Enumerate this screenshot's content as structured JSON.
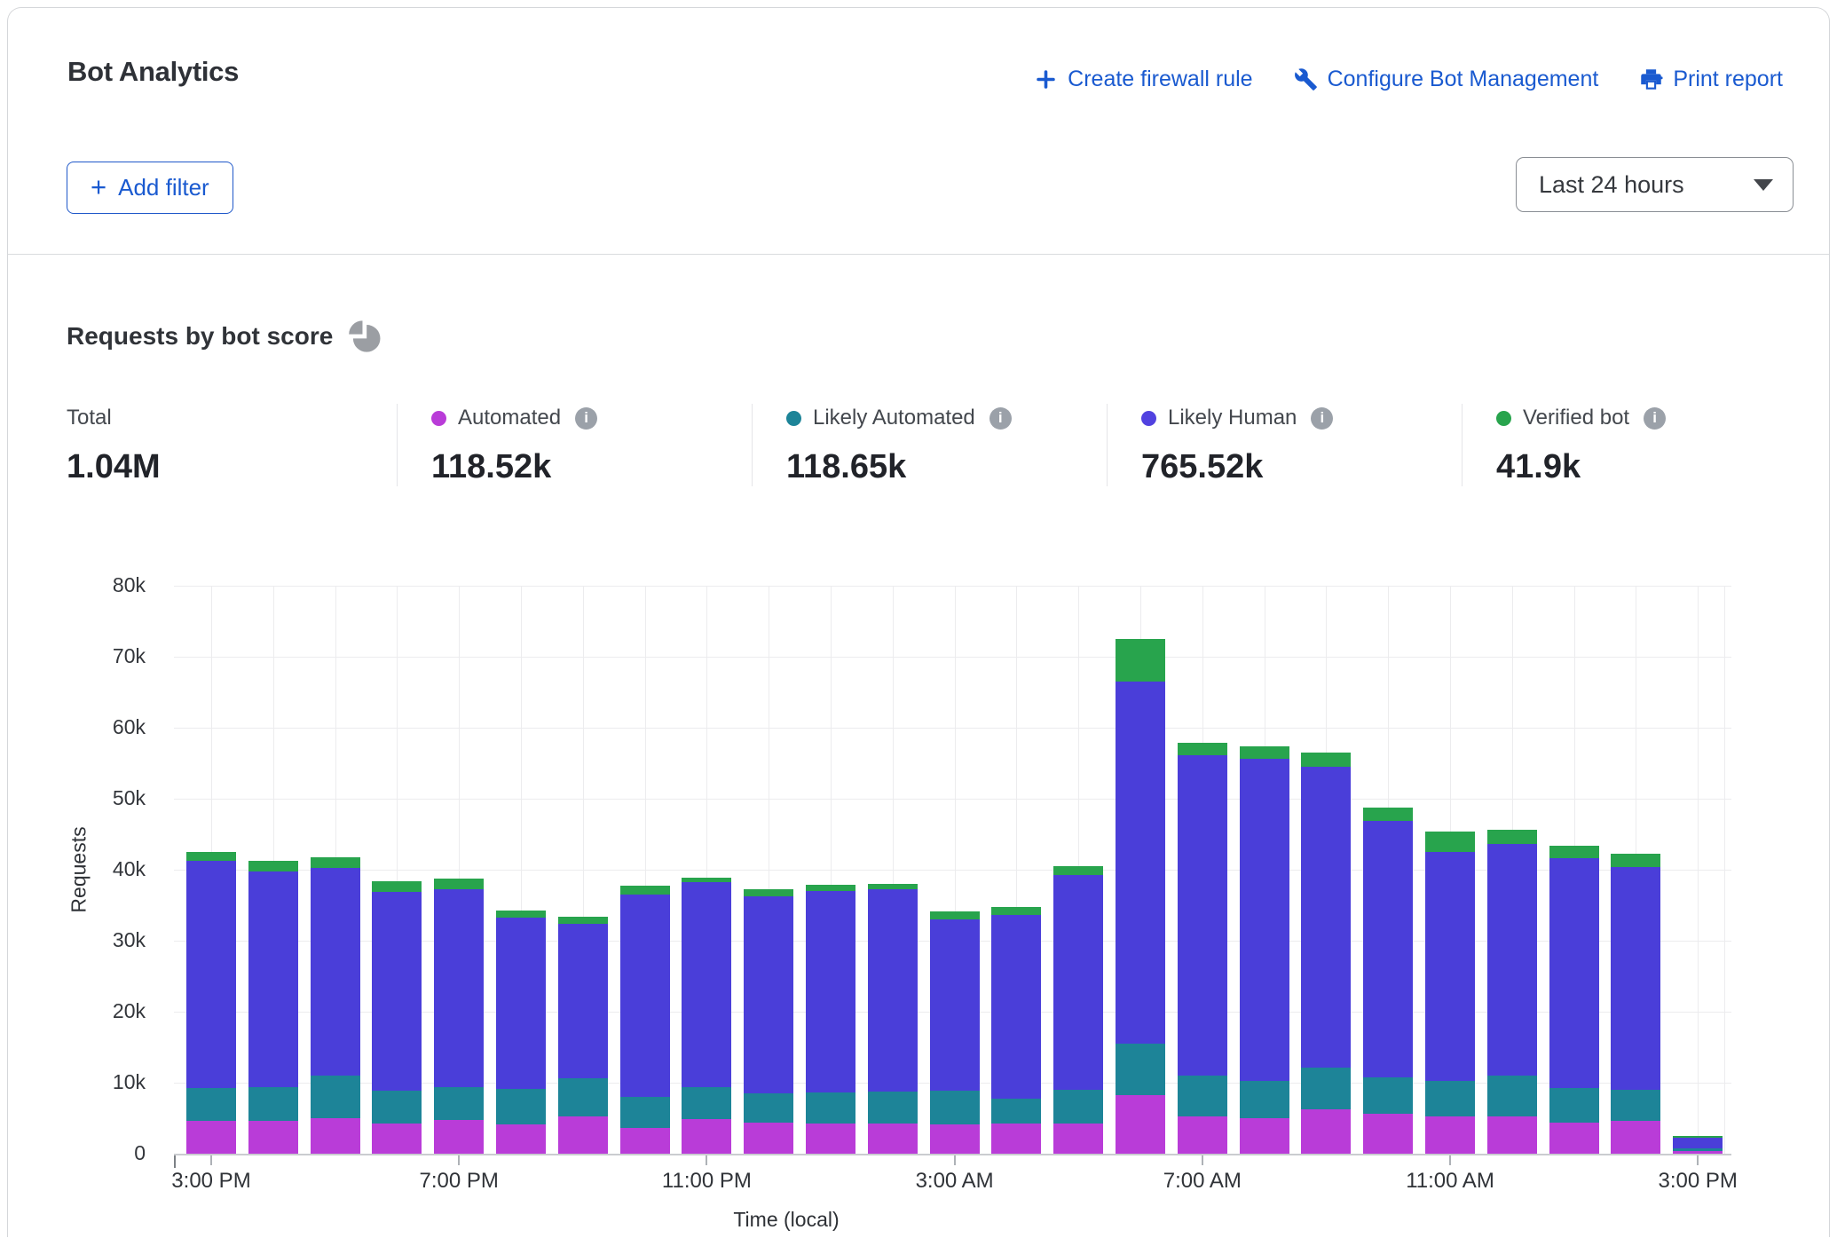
{
  "page": {
    "title": "Bot Analytics"
  },
  "header": {
    "actions": [
      {
        "name": "create-firewall-rule",
        "icon": "plus",
        "label": "Create firewall rule"
      },
      {
        "name": "configure-bot-management",
        "icon": "wrench",
        "label": "Configure Bot Management"
      },
      {
        "name": "print-report",
        "icon": "printer",
        "label": "Print report"
      }
    ],
    "add_filter": {
      "label": "Add filter"
    },
    "time_range": {
      "value": "Last 24 hours"
    }
  },
  "section": {
    "title": "Requests by bot score",
    "icon": "pie-chart"
  },
  "colors": {
    "link_blue": "#1a5ad0",
    "automated": "#b93cd8",
    "likely_automated": "#1d8498",
    "likely_human": "#4a3ed9",
    "verified_bot": "#28a44d",
    "info_grey": "#9ba1a9"
  },
  "stats": [
    {
      "name": "total",
      "label": "Total",
      "value": "1.04M"
    },
    {
      "name": "automated",
      "label": "Automated",
      "value": "118.52k",
      "dot_color": "#b93cd8",
      "info": true
    },
    {
      "name": "likely-automated",
      "label": "Likely Automated",
      "value": "118.65k",
      "dot_color": "#1d8498",
      "info": true
    },
    {
      "name": "likely-human",
      "label": "Likely Human",
      "value": "765.52k",
      "dot_color": "#5142e0",
      "info": true
    },
    {
      "name": "verified-bot",
      "label": "Verified bot",
      "value": "41.9k",
      "dot_color": "#28a44d",
      "info": true
    }
  ],
  "chart_data": {
    "type": "bar",
    "stacked": true,
    "title": "Requests by bot score",
    "ylabel": "Requests",
    "xlabel": "Time (local)",
    "ylim": [
      0,
      80000
    ],
    "ytick_labels": [
      "0",
      "10k",
      "20k",
      "30k",
      "40k",
      "50k",
      "60k",
      "70k",
      "80k"
    ],
    "grid": true,
    "bar_count": 25,
    "bar_interval": "1 hour",
    "values_unit": "thousands of requests",
    "xtick_labels": [
      {
        "bar_index": 0,
        "label": "3:00 PM"
      },
      {
        "bar_index": 4,
        "label": "7:00 PM"
      },
      {
        "bar_index": 8,
        "label": "11:00 PM"
      },
      {
        "bar_index": 12,
        "label": "3:00 AM"
      },
      {
        "bar_index": 16,
        "label": "7:00 AM"
      },
      {
        "bar_index": 20,
        "label": "11:00 AM"
      },
      {
        "bar_index": 24,
        "label": "3:00 PM"
      }
    ],
    "series": [
      {
        "name": "Automated",
        "color": "#b93cd8",
        "values": [
          4.6,
          4.6,
          5.0,
          4.3,
          4.7,
          4.1,
          5.3,
          3.6,
          4.9,
          4.4,
          4.2,
          4.2,
          4.1,
          4.2,
          4.2,
          8.3,
          5.2,
          5.0,
          6.2,
          5.6,
          5.3,
          5.3,
          4.4,
          4.6,
          0.4
        ]
      },
      {
        "name": "Likely Automated",
        "color": "#1d8498",
        "values": [
          4.6,
          4.8,
          6.0,
          4.6,
          4.7,
          5.0,
          5.3,
          4.4,
          4.5,
          4.1,
          4.4,
          4.6,
          4.8,
          3.6,
          4.8,
          7.2,
          5.8,
          5.3,
          5.9,
          5.1,
          5.0,
          5.7,
          4.8,
          4.4,
          0.3
        ]
      },
      {
        "name": "Likely Human",
        "color": "#4a3ed9",
        "values": [
          32.0,
          30.4,
          29.3,
          28.0,
          27.9,
          24.1,
          21.8,
          28.5,
          28.8,
          27.7,
          28.4,
          28.4,
          24.1,
          25.8,
          30.2,
          51.0,
          45.1,
          45.3,
          42.4,
          36.2,
          32.2,
          32.6,
          32.4,
          31.4,
          1.6
        ]
      },
      {
        "name": "Verified bot",
        "color": "#28a44d",
        "values": [
          1.3,
          1.4,
          1.4,
          1.5,
          1.5,
          1.1,
          1.0,
          1.2,
          0.7,
          1.0,
          0.9,
          0.8,
          1.1,
          1.1,
          1.3,
          6.0,
          1.8,
          1.8,
          2.0,
          1.9,
          2.9,
          2.0,
          1.8,
          1.8,
          0.2
        ]
      }
    ],
    "legend_position": "stats row above chart"
  }
}
